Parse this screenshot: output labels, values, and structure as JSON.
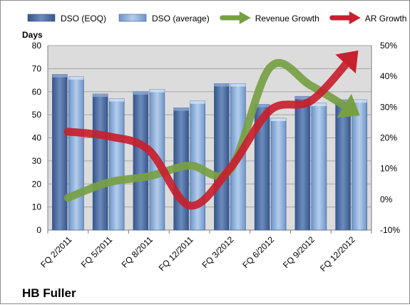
{
  "chart_data": {
    "type": "bar",
    "title": "HB Fuller",
    "y_left_label": "Days",
    "y_left_lim": [
      0,
      80
    ],
    "y_left_ticks": [
      "0",
      "10",
      "20",
      "30",
      "40",
      "50",
      "60",
      "70",
      "80"
    ],
    "y_right_lim": [
      -10,
      50
    ],
    "y_right_ticks": [
      "-10%",
      "0%",
      "10%",
      "20%",
      "30%",
      "40%",
      "50%"
    ],
    "categories": [
      "FQ 2/2011",
      "FQ 5/2011",
      "FQ 8/2011",
      "FQ 12/2011",
      "FQ 3/2012",
      "FQ 6/2012",
      "FQ 9/2012",
      "FQ 12/2012"
    ],
    "legend_position": "top",
    "series": [
      {
        "name": "DSO (EOQ)",
        "kind": "bar",
        "axis": "left",
        "color": "#4f6fa3",
        "values": [
          67.5,
          59,
          60,
          53,
          63.5,
          54.5,
          58,
          56.5
        ]
      },
      {
        "name": "DSO (average)",
        "kind": "bar",
        "axis": "left",
        "color": "#8fb3df",
        "values": [
          66.5,
          57,
          61,
          56,
          63.5,
          48.5,
          55,
          56.5
        ]
      },
      {
        "name": "Revenue Growth",
        "kind": "line",
        "axis": "right",
        "color": "#77a043",
        "values": [
          0.5,
          5.5,
          7.5,
          11,
          9.5,
          43,
          37,
          29
        ]
      },
      {
        "name": "AR Growth",
        "kind": "line",
        "axis": "right",
        "color": "#c8202e",
        "values": [
          22,
          20.5,
          16,
          -2,
          10,
          29,
          32,
          46
        ]
      }
    ]
  }
}
